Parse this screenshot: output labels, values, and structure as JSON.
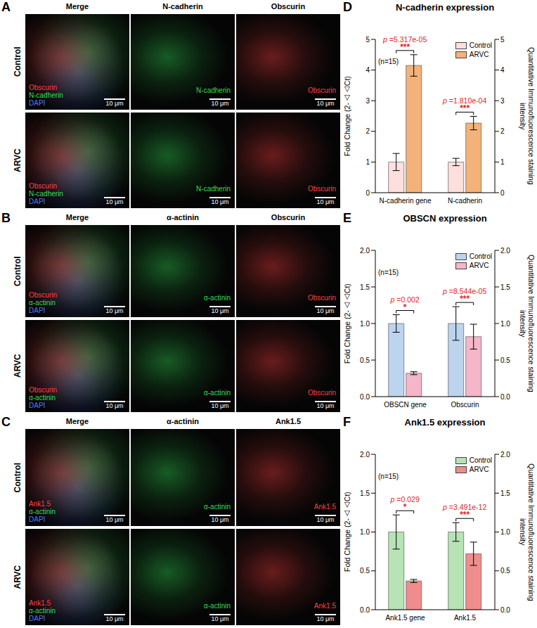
{
  "image_panels": [
    {
      "panel": "A",
      "rows": [
        "Control",
        "ARVC"
      ],
      "scale_bar": "10 μm",
      "columns": [
        {
          "title": "Merge",
          "channels": [
            {
              "name": "Obscurin",
              "color": "#ff4040"
            },
            {
              "name": "N-cadherin",
              "color": "#33dd55"
            },
            {
              "name": "DAPI",
              "color": "#5577ff"
            }
          ]
        },
        {
          "title": "N-cadherin",
          "channels": [
            {
              "name": "N-cadherin",
              "color": "#33dd55"
            }
          ]
        },
        {
          "title": "Obscurin",
          "channels": [
            {
              "name": "Obscurin",
              "color": "#ff4040"
            }
          ]
        }
      ]
    },
    {
      "panel": "B",
      "rows": [
        "Control",
        "ARVC"
      ],
      "scale_bar": "10 μm",
      "columns": [
        {
          "title": "Merge",
          "channels": [
            {
              "name": "Obscurin",
              "color": "#ff4040"
            },
            {
              "name": "α-actinin",
              "color": "#33dd55"
            },
            {
              "name": "DAPI",
              "color": "#5577ff"
            }
          ]
        },
        {
          "title": "α-actinin",
          "channels": [
            {
              "name": "α-actinin",
              "color": "#33dd55"
            }
          ]
        },
        {
          "title": "Obscurin",
          "channels": [
            {
              "name": "Obscurin",
              "color": "#ff4040"
            }
          ]
        }
      ]
    },
    {
      "panel": "C",
      "rows": [
        "Control",
        "ARVC"
      ],
      "scale_bar": "10 μm",
      "columns": [
        {
          "title": "Merge",
          "channels": [
            {
              "name": "Ank1.5",
              "color": "#ff4040"
            },
            {
              "name": "α-actinin",
              "color": "#33dd55"
            },
            {
              "name": "DAPI",
              "color": "#5577ff"
            }
          ]
        },
        {
          "title": "α-actinin",
          "channels": [
            {
              "name": "α-actinin",
              "color": "#33dd55"
            }
          ]
        },
        {
          "title": "Ank1.5",
          "channels": [
            {
              "name": "Ank1.5",
              "color": "#ff4040"
            }
          ]
        }
      ]
    }
  ],
  "chart_data": [
    {
      "panel": "D",
      "type": "bar",
      "title": "N-cadherin expression",
      "categories": [
        "N-cadherin gene",
        "N-cadherin"
      ],
      "series": [
        {
          "name": "Control",
          "color": "#fde0de",
          "values": [
            1.0,
            1.0
          ],
          "errors": [
            0.28,
            0.12
          ]
        },
        {
          "name": "ARVC",
          "color": "#f2b27a",
          "values": [
            4.15,
            2.27
          ],
          "errors": [
            0.35,
            0.22
          ]
        }
      ],
      "ylim": [
        0,
        5
      ],
      "yticks": [
        0,
        1,
        2,
        3,
        4,
        5
      ],
      "y2lim": [
        0,
        5
      ],
      "y2ticks": [
        0,
        1,
        2,
        3,
        4,
        5
      ],
      "y_label": "Fold Change (2-△△Ct)",
      "y2_label": "Quantitative Immunofluorescence staining intensity",
      "annotations": [
        "(n=15)"
      ],
      "significance": [
        {
          "p": "p =5.317e-05",
          "stars": "***"
        },
        {
          "p": "p =1.810e-04",
          "stars": "***"
        }
      ],
      "legend": "upper right"
    },
    {
      "panel": "E",
      "type": "bar",
      "title": "OBSCN expression",
      "categories": [
        "OBSCN gene",
        "Obscurin"
      ],
      "series": [
        {
          "name": "Control",
          "color": "#bcd4ee",
          "values": [
            1.0,
            1.0
          ],
          "errors": [
            0.12,
            0.23
          ]
        },
        {
          "name": "ARVC",
          "color": "#f4b6c8",
          "values": [
            0.32,
            0.82
          ],
          "errors": [
            0.02,
            0.17
          ]
        }
      ],
      "ylim": [
        0,
        2
      ],
      "yticks": [
        {
          "value": 0,
          "label": "0.0"
        },
        {
          "value": 0.5,
          "label": "0.5"
        },
        {
          "value": 1,
          "label": "1.0"
        },
        {
          "value": 1.5,
          "label": "1.5"
        },
        {
          "value": 2,
          "label": "2.0"
        }
      ],
      "y2lim": [
        0,
        2
      ],
      "y2ticks": [
        {
          "value": 0,
          "label": "0.0"
        },
        {
          "value": 0.5,
          "label": "0.5"
        },
        {
          "value": 1,
          "label": "1.0"
        },
        {
          "value": 1.5,
          "label": "1.5"
        },
        {
          "value": 2,
          "label": "2.0"
        }
      ],
      "y_label": "Fold Change (2-△△Ct)",
      "y2_label": "Quantitative Immunofluorescence staining intensity",
      "annotations": [
        "(n=15)"
      ],
      "significance": [
        {
          "p": "p =0.002",
          "stars": "*"
        },
        {
          "p": "p =8.544e-05",
          "stars": "***"
        }
      ],
      "legend": "upper right"
    },
    {
      "panel": "F",
      "type": "bar",
      "title": "Ank1.5 expression",
      "categories": [
        "Ank1.5 gene",
        "Ank1.5"
      ],
      "series": [
        {
          "name": "Control",
          "color": "#b8e3b5",
          "values": [
            1.0,
            1.0
          ],
          "errors": [
            0.22,
            0.12
          ]
        },
        {
          "name": "ARVC",
          "color": "#ef8d8d",
          "values": [
            0.37,
            0.72
          ],
          "errors": [
            0.02,
            0.15
          ]
        }
      ],
      "ylim": [
        0,
        2
      ],
      "yticks": [
        {
          "value": 0,
          "label": "0.0"
        },
        {
          "value": 0.5,
          "label": "0.5"
        },
        {
          "value": 1,
          "label": "1.0"
        },
        {
          "value": 1.5,
          "label": "1.5"
        },
        {
          "value": 2,
          "label": "2.0"
        }
      ],
      "y2lim": [
        0,
        2
      ],
      "y2ticks": [
        {
          "value": 0,
          "label": "0.0"
        },
        {
          "value": 0.5,
          "label": "0.5"
        },
        {
          "value": 1,
          "label": "1.0"
        },
        {
          "value": 1.5,
          "label": "1.5"
        },
        {
          "value": 2,
          "label": "2.0"
        }
      ],
      "y_label": "Fold Change (2-△△Ct)",
      "y2_label": "Quantitative Immunofluorescence staining intensity",
      "annotations": [
        "(n=15)"
      ],
      "significance": [
        {
          "p": "p =0.029",
          "stars": "*"
        },
        {
          "p": "p =3.491e-12",
          "stars": "***"
        }
      ],
      "legend": "upper right"
    }
  ]
}
